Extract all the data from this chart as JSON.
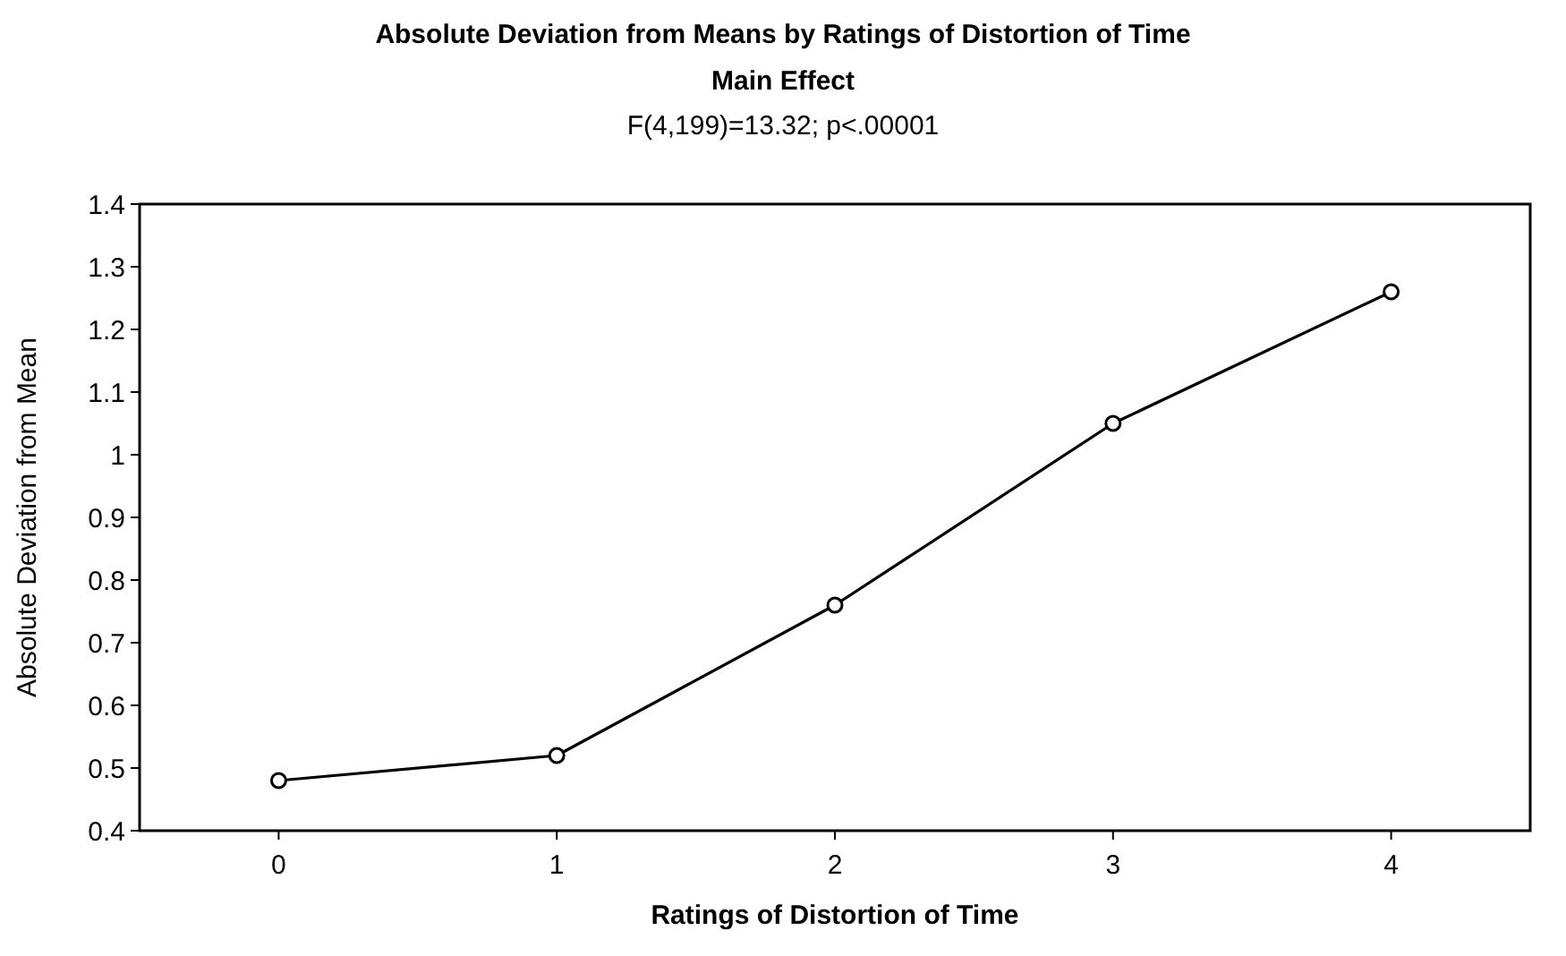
{
  "chart_data": {
    "type": "line",
    "title": "Absolute Deviation from Means by Ratings of Distortion of Time",
    "subtitle": "Main Effect\nF(4,199)=13.32; p<.00001",
    "xlabel": "Ratings of Distortion of Time",
    "ylabel": "Absolute Deviation from Mean",
    "categories": [
      "0",
      "1",
      "2",
      "3",
      "4"
    ],
    "series": [
      {
        "color": "#000000",
        "values": [
          0.48,
          0.52,
          0.76,
          1.05,
          1.26
        ]
      }
    ],
    "ylim": [
      0.4,
      1.4
    ],
    "yticks": [
      0.4,
      0.5,
      0.6,
      0.7,
      0.8,
      0.9,
      {
        "value": 1,
        "label": "1"
      },
      1.1,
      1.2,
      1.3,
      1.4
    ],
    "grid": false,
    "marker": "circle",
    "line_style": "solid"
  }
}
